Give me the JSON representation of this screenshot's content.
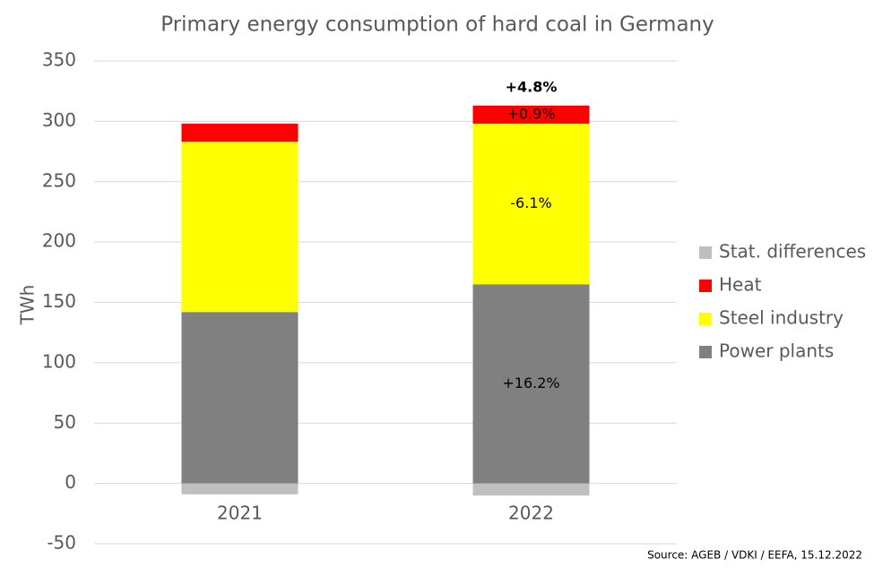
{
  "chart_data": {
    "type": "stacked_bar",
    "title": "Primary energy consumption of hard coal in Germany",
    "y_label": "TWh",
    "source": "Source: AGEB / VDKI / EEFA, 15.12.2022",
    "categories": [
      "2021",
      "2022"
    ],
    "series": [
      {
        "name": "Power plants",
        "color": "#808080",
        "values": [
          142,
          165
        ],
        "change_labels": [
          null,
          "+16.2%"
        ]
      },
      {
        "name": "Steel industry",
        "color": "#ffff00",
        "values": [
          141,
          133
        ],
        "change_labels": [
          null,
          "-6.1%"
        ]
      },
      {
        "name": "Heat",
        "color": "#ff0000",
        "values": [
          15,
          15
        ],
        "change_labels": [
          null,
          "+0.9%"
        ]
      },
      {
        "name": "Stat. differences",
        "color": "#bfbfbf",
        "values": [
          -9,
          -10
        ]
      }
    ],
    "total_change_labels": [
      null,
      "+4.8%"
    ],
    "ylim": [
      -50,
      350
    ],
    "yticks": [
      -50,
      0,
      50,
      100,
      150,
      200,
      250,
      300,
      350
    ],
    "grid": true,
    "legend": "right"
  }
}
